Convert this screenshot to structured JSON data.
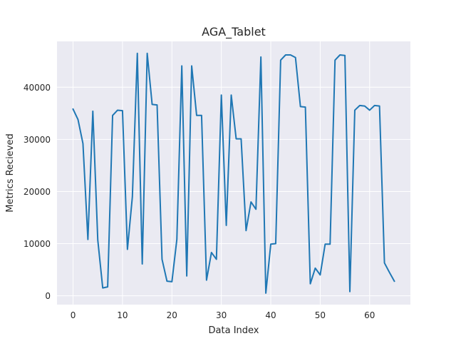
{
  "chart_data": {
    "type": "line",
    "title": "AGA_Tablet",
    "xlabel": "Data Index",
    "ylabel": "Metrics Recieved",
    "xlim": [
      -3.25,
      68.25
    ],
    "ylim": [
      -1700,
      48800
    ],
    "x_ticks": [
      0,
      10,
      20,
      30,
      40,
      50,
      60
    ],
    "y_ticks": [
      0,
      10000,
      20000,
      30000,
      40000
    ],
    "x_tick_labels": [
      "0",
      "10",
      "20",
      "30",
      "40",
      "50",
      "60"
    ],
    "y_tick_labels": [
      "0",
      "10000",
      "20000",
      "30000",
      "40000"
    ],
    "grid": true,
    "series": [
      {
        "color": "#1f77b4",
        "x": [
          0,
          1,
          2,
          3,
          4,
          5,
          6,
          7,
          8,
          9,
          10,
          11,
          12,
          13,
          14,
          15,
          16,
          17,
          18,
          19,
          20,
          21,
          22,
          23,
          24,
          25,
          26,
          27,
          28,
          29,
          30,
          31,
          32,
          33,
          34,
          35,
          36,
          37,
          38,
          39,
          40,
          41,
          42,
          43,
          44,
          45,
          46,
          47,
          48,
          49,
          50,
          51,
          52,
          53,
          54,
          55,
          56,
          57,
          58,
          59,
          60,
          61,
          62,
          63,
          64,
          65
        ],
        "y": [
          35800,
          33800,
          29200,
          10800,
          35400,
          10700,
          1500,
          1700,
          34600,
          35600,
          35500,
          8900,
          19000,
          46500,
          6100,
          46500,
          36700,
          36600,
          7000,
          2800,
          2700,
          10800,
          44100,
          3800,
          44100,
          34600,
          34600,
          3000,
          8300,
          7000,
          38500,
          13500,
          38500,
          30100,
          30100,
          12500,
          18000,
          16600,
          45800,
          500,
          9900,
          10000,
          45200,
          46200,
          46200,
          45700,
          36300,
          36200,
          2300,
          5300,
          4000,
          9900,
          9900,
          45200,
          46200,
          46100,
          800,
          35600,
          36500,
          36400,
          35600,
          36500,
          36400,
          6300,
          4500,
          2800
        ]
      }
    ]
  }
}
